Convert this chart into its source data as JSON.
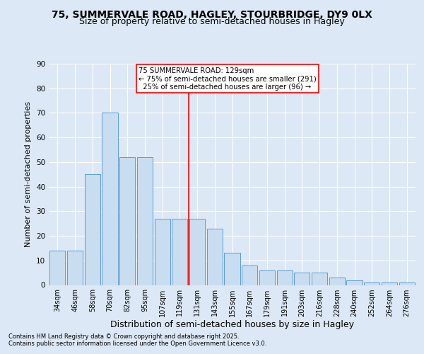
{
  "title1": "75, SUMMERVALE ROAD, HAGLEY, STOURBRIDGE, DY9 0LX",
  "title2": "Size of property relative to semi-detached houses in Hagley",
  "xlabel": "Distribution of semi-detached houses by size in Hagley",
  "ylabel": "Number of semi-detached properties",
  "footnote1": "Contains HM Land Registry data © Crown copyright and database right 2025.",
  "footnote2": "Contains public sector information licensed under the Open Government Licence v3.0.",
  "bar_labels": [
    "34sqm",
    "46sqm",
    "58sqm",
    "70sqm",
    "82sqm",
    "95sqm",
    "107sqm",
    "119sqm",
    "131sqm",
    "143sqm",
    "155sqm",
    "167sqm",
    "179sqm",
    "191sqm",
    "203sqm",
    "216sqm",
    "228sqm",
    "240sqm",
    "252sqm",
    "264sqm",
    "276sqm"
  ],
  "bar_values": [
    14,
    14,
    45,
    70,
    52,
    52,
    27,
    27,
    27,
    23,
    13,
    8,
    6,
    6,
    5,
    5,
    3,
    2,
    1,
    1,
    1
  ],
  "bar_color": "#c9ddf0",
  "bar_edgecolor": "#5b9bd5",
  "vline_color": "red",
  "annotation_title": "75 SUMMERVALE ROAD: 129sqm",
  "annotation_line1": "← 75% of semi-detached houses are smaller (291)",
  "annotation_line2": "  25% of semi-detached houses are larger (96) →",
  "annotation_box_color": "white",
  "annotation_box_edgecolor": "red",
  "ylim": [
    0,
    90
  ],
  "yticks": [
    0,
    10,
    20,
    30,
    40,
    50,
    60,
    70,
    80,
    90
  ],
  "bg_color": "#dce8f5",
  "plot_bg_color": "#dce8f5",
  "grid_color": "white",
  "title1_fontsize": 10,
  "title2_fontsize": 9,
  "xlabel_fontsize": 9,
  "ylabel_fontsize": 8
}
